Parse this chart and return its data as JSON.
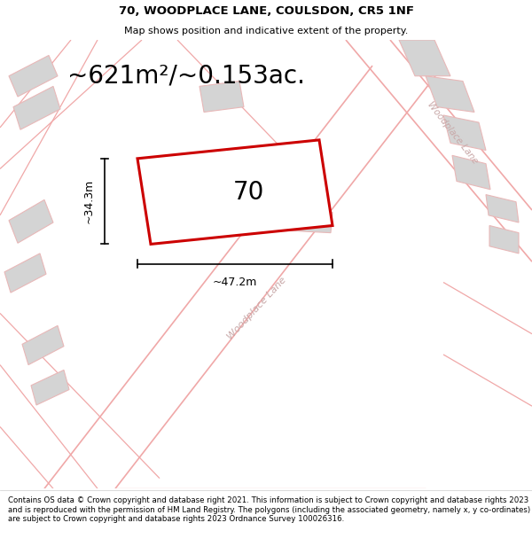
{
  "title_line1": "70, WOODPLACE LANE, COULSDON, CR5 1NF",
  "title_line2": "Map shows position and indicative extent of the property.",
  "area_text": "~621m²/~0.153ac.",
  "plot_number": "70",
  "width_label": "~47.2m",
  "height_label": "~34.3m",
  "footer_text": "Contains OS data © Crown copyright and database right 2021. This information is subject to Crown copyright and database rights 2023 and is reproduced with the permission of HM Land Registry. The polygons (including the associated geometry, namely x, y co-ordinates) are subject to Crown copyright and database rights 2023 Ordnance Survey 100026316.",
  "bg_color": "#f7f7f7",
  "road_color": "#f0a8a8",
  "building_color": "#d4d4d4",
  "building_edge": "#e8b8b8",
  "plot_color": "#cc0000",
  "text_color": "#000000",
  "road_label_color": "#c8a8a8",
  "title_fontsize": 9.5,
  "subtitle_fontsize": 8,
  "area_fontsize": 20,
  "plot_num_fontsize": 20,
  "dim_label_fontsize": 9,
  "road_label_fontsize": 8,
  "footer_fontsize": 6.2
}
